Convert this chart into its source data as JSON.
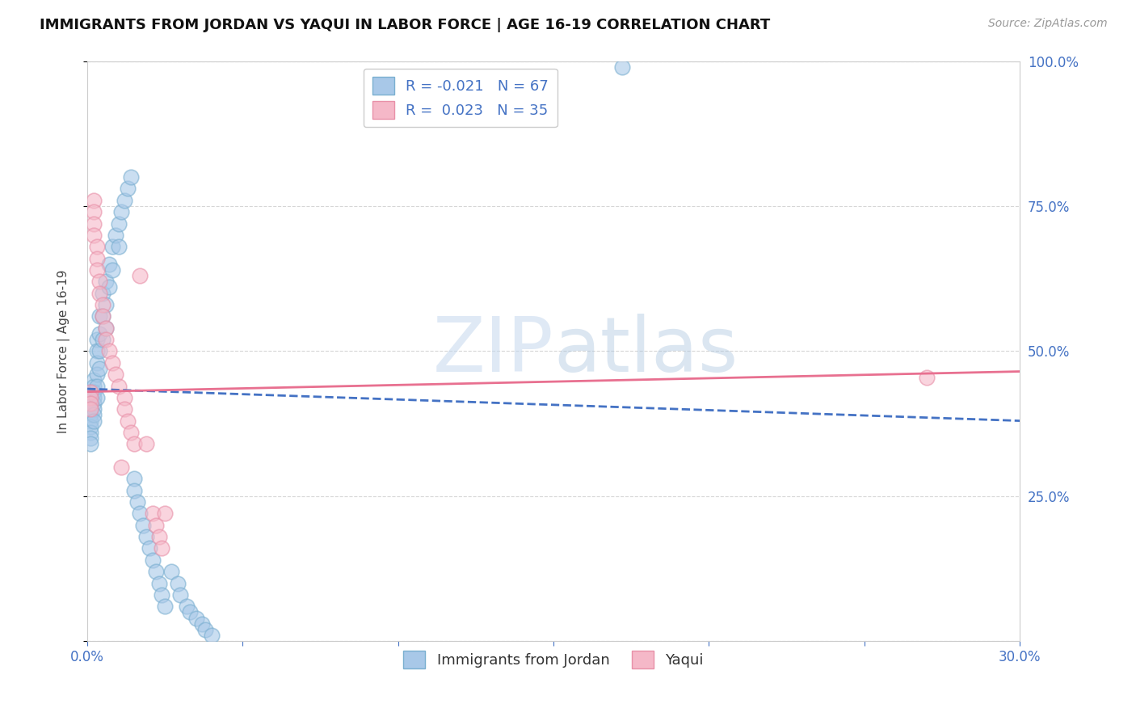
{
  "title": "IMMIGRANTS FROM JORDAN VS YAQUI IN LABOR FORCE | AGE 16-19 CORRELATION CHART",
  "source": "Source: ZipAtlas.com",
  "ylabel": "In Labor Force | Age 16-19",
  "xlim": [
    0.0,
    0.3
  ],
  "ylim": [
    0.0,
    1.0
  ],
  "legend1_label": "R = -0.021   N = 67",
  "legend2_label": "R =  0.023   N = 35",
  "watermark_zip": "ZIP",
  "watermark_atlas": "atlas",
  "background_color": "#ffffff",
  "grid_color": "#cccccc",
  "blue_fill": "#a8c8e8",
  "pink_fill": "#f5b8c8",
  "blue_edge": "#7aafd0",
  "pink_edge": "#e890a8",
  "blue_line_color": "#4472c4",
  "pink_line_color": "#e87090",
  "jordan_x": [
    0.001,
    0.001,
    0.001,
    0.001,
    0.001,
    0.001,
    0.001,
    0.001,
    0.001,
    0.001,
    0.002,
    0.002,
    0.002,
    0.002,
    0.002,
    0.002,
    0.002,
    0.002,
    0.003,
    0.003,
    0.003,
    0.003,
    0.003,
    0.003,
    0.004,
    0.004,
    0.004,
    0.004,
    0.005,
    0.005,
    0.005,
    0.006,
    0.006,
    0.006,
    0.007,
    0.007,
    0.008,
    0.008,
    0.009,
    0.01,
    0.01,
    0.011,
    0.012,
    0.013,
    0.014,
    0.015,
    0.015,
    0.016,
    0.017,
    0.018,
    0.019,
    0.02,
    0.021,
    0.022,
    0.023,
    0.024,
    0.025,
    0.027,
    0.029,
    0.03,
    0.032,
    0.033,
    0.035,
    0.037,
    0.038,
    0.04,
    0.172
  ],
  "jordan_y": [
    0.43,
    0.42,
    0.41,
    0.4,
    0.39,
    0.38,
    0.37,
    0.36,
    0.35,
    0.34,
    0.45,
    0.44,
    0.43,
    0.42,
    0.41,
    0.4,
    0.39,
    0.38,
    0.52,
    0.5,
    0.48,
    0.46,
    0.44,
    0.42,
    0.56,
    0.53,
    0.5,
    0.47,
    0.6,
    0.56,
    0.52,
    0.62,
    0.58,
    0.54,
    0.65,
    0.61,
    0.68,
    0.64,
    0.7,
    0.72,
    0.68,
    0.74,
    0.76,
    0.78,
    0.8,
    0.28,
    0.26,
    0.24,
    0.22,
    0.2,
    0.18,
    0.16,
    0.14,
    0.12,
    0.1,
    0.08,
    0.06,
    0.12,
    0.1,
    0.08,
    0.06,
    0.05,
    0.04,
    0.03,
    0.02,
    0.01,
    0.99
  ],
  "yaqui_x": [
    0.001,
    0.001,
    0.001,
    0.001,
    0.002,
    0.002,
    0.002,
    0.002,
    0.003,
    0.003,
    0.003,
    0.004,
    0.004,
    0.005,
    0.005,
    0.006,
    0.006,
    0.007,
    0.008,
    0.009,
    0.01,
    0.011,
    0.012,
    0.012,
    0.013,
    0.014,
    0.015,
    0.017,
    0.019,
    0.021,
    0.022,
    0.023,
    0.024,
    0.025,
    0.27
  ],
  "yaqui_y": [
    0.43,
    0.42,
    0.41,
    0.4,
    0.76,
    0.74,
    0.72,
    0.7,
    0.68,
    0.66,
    0.64,
    0.62,
    0.6,
    0.58,
    0.56,
    0.54,
    0.52,
    0.5,
    0.48,
    0.46,
    0.44,
    0.3,
    0.42,
    0.4,
    0.38,
    0.36,
    0.34,
    0.63,
    0.34,
    0.22,
    0.2,
    0.18,
    0.16,
    0.22,
    0.455
  ],
  "jordan_trend_x": [
    0.0,
    0.3
  ],
  "jordan_trend_y": [
    0.435,
    0.38
  ],
  "yaqui_trend_x": [
    0.0,
    0.3
  ],
  "yaqui_trend_y": [
    0.43,
    0.465
  ]
}
